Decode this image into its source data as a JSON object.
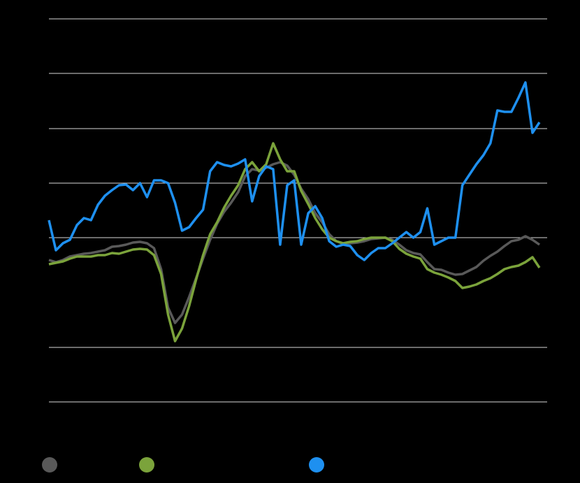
{
  "chart_data": {
    "type": "line",
    "categories": [
      null,
      null,
      null,
      null,
      null,
      null,
      null,
      null,
      null,
      null,
      null,
      null,
      null,
      null,
      null,
      null,
      null,
      null,
      null,
      null,
      null,
      null,
      null,
      null,
      null,
      null,
      null,
      null,
      null,
      null,
      null,
      null,
      null,
      null,
      null,
      null,
      null,
      null,
      null,
      null,
      null,
      null,
      null,
      null,
      null,
      null,
      null,
      null,
      null,
      null,
      null,
      null,
      null,
      null,
      null,
      null,
      null,
      null,
      null,
      null,
      null,
      null,
      null,
      null,
      null,
      null,
      null,
      null,
      null,
      null,
      null
    ],
    "ylim": [
      -78,
      470
    ],
    "yticks": [
      -78,
      0,
      157,
      235,
      313,
      392,
      470
    ],
    "grid": true,
    "series": [
      {
        "color": "#595959",
        "values": [
          125,
          122,
          125,
          130,
          132,
          134,
          135,
          137,
          139,
          144,
          145,
          147,
          150,
          151,
          149,
          142,
          112,
          57,
          35,
          47,
          72,
          99,
          127,
          154,
          177,
          194,
          207,
          222,
          245,
          255,
          253,
          257,
          262,
          265,
          260,
          247,
          227,
          212,
          192,
          179,
          162,
          152,
          148,
          149,
          150,
          152,
          155,
          156,
          157,
          154,
          147,
          139,
          135,
          133,
          122,
          112,
          111,
          107,
          104,
          105,
          110,
          115,
          124,
          131,
          137,
          145,
          152,
          154,
          159,
          154,
          147
        ]
      },
      {
        "color": "#7ba33b",
        "values": [
          119,
          121,
          123,
          127,
          130,
          130,
          130,
          132,
          132,
          135,
          134,
          137,
          140,
          141,
          140,
          132,
          105,
          47,
          9,
          27,
          59,
          97,
          132,
          162,
          179,
          200,
          217,
          232,
          255,
          265,
          252,
          262,
          292,
          269,
          252,
          252,
          224,
          205,
          185,
          169,
          157,
          152,
          149,
          151,
          152,
          155,
          157,
          157,
          157,
          152,
          141,
          134,
          130,
          127,
          112,
          107,
          104,
          100,
          95,
          85,
          87,
          90,
          95,
          99,
          105,
          112,
          115,
          117,
          122,
          129,
          114
        ]
      },
      {
        "color": "#1e90f0",
        "values": [
          182,
          139,
          149,
          154,
          175,
          185,
          182,
          204,
          217,
          225,
          232,
          233,
          225,
          235,
          215,
          239,
          239,
          235,
          207,
          167,
          172,
          185,
          197,
          252,
          265,
          261,
          259,
          263,
          269,
          209,
          245,
          259,
          255,
          147,
          232,
          239,
          147,
          192,
          202,
          185,
          152,
          144,
          147,
          145,
          132,
          125,
          135,
          142,
          142,
          149,
          157,
          165,
          157,
          165,
          199,
          147,
          152,
          157,
          157,
          232,
          247,
          262,
          275,
          292,
          339,
          337,
          337,
          357,
          379,
          307,
          322
        ]
      }
    ]
  }
}
